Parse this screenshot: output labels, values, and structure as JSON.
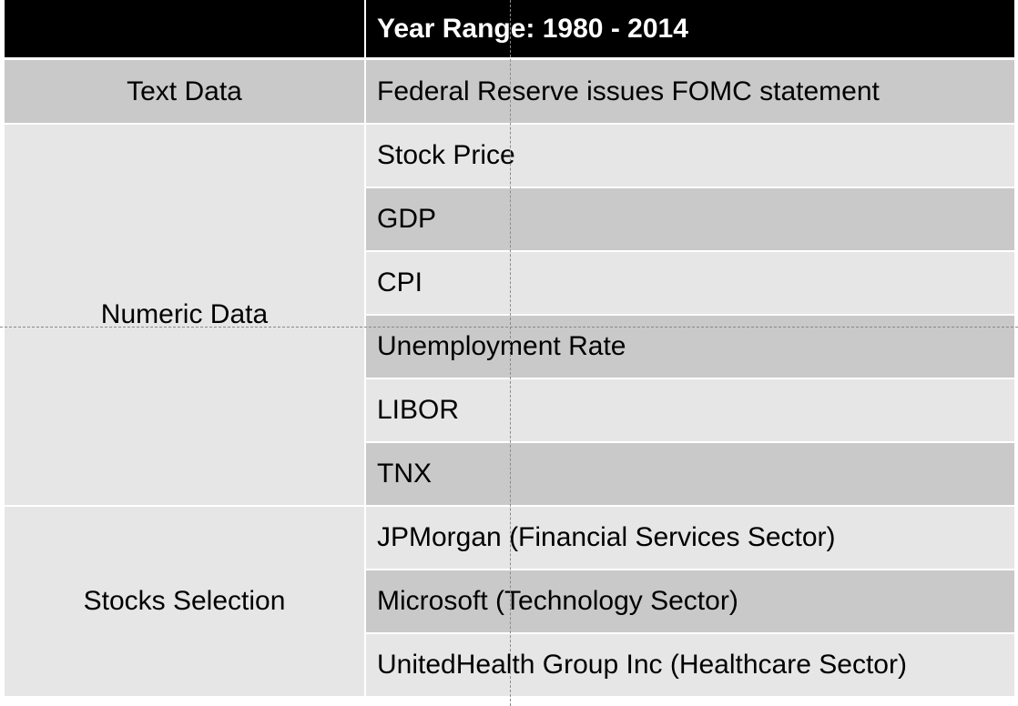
{
  "header": {
    "left": "",
    "year_range": "Year Range: 1980 - 2014"
  },
  "sections": {
    "text_data": {
      "label": "Text Data",
      "items": [
        "Federal Reserve issues FOMC statement"
      ]
    },
    "numeric_data": {
      "label": "Numeric Data",
      "items": [
        "Stock Price",
        "GDP",
        "CPI",
        "Unemployment Rate",
        "LIBOR",
        "TNX"
      ]
    },
    "stocks_selection": {
      "label": "Stocks Selection",
      "items": [
        "JPMorgan (Financial Services Sector)",
        "Microsoft (Technology Sector)",
        "UnitedHealth Group Inc (Healthcare Sector)"
      ]
    }
  },
  "colors": {
    "header_bg": "#000000",
    "row_dark": "#c9c9c9",
    "row_light": "#e6e6e6",
    "guide_line": "#8a8a8a"
  }
}
